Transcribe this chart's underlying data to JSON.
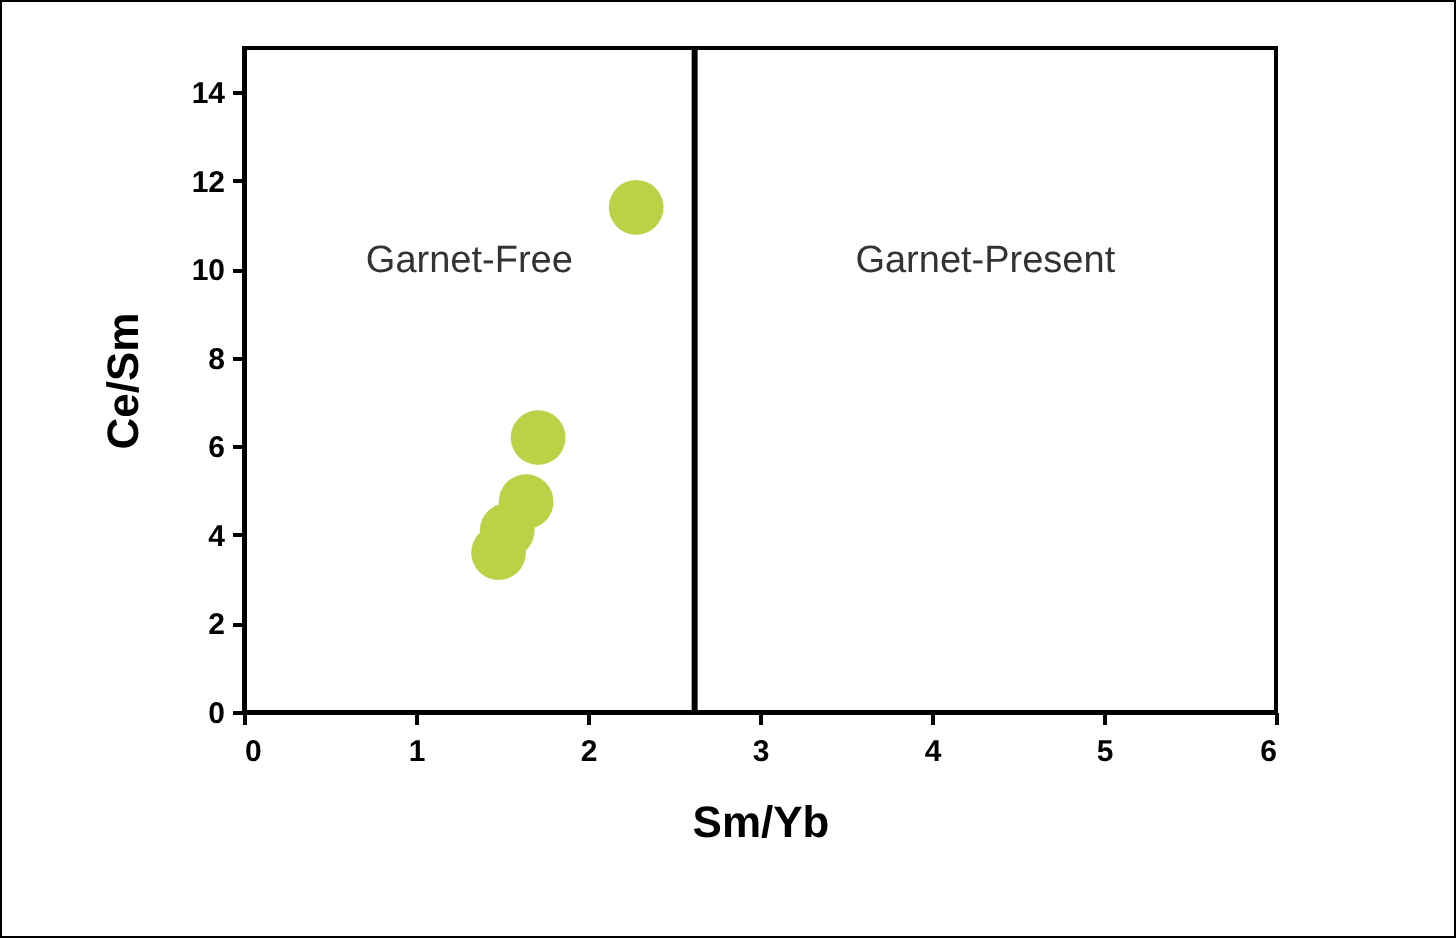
{
  "chart_data": {
    "type": "scatter",
    "xlabel": "Sm/Yb",
    "ylabel": "Ce/Sm",
    "x": [
      2.28,
      1.71,
      1.64,
      1.53,
      1.48
    ],
    "series": [
      {
        "color": "#bcd246",
        "values": [
          11.4,
          6.2,
          4.75,
          4.1,
          3.6
        ]
      }
    ],
    "xlim": [
      0,
      6
    ],
    "xticks": [
      0,
      1,
      2,
      3,
      4,
      5,
      6
    ],
    "ylim": [
      0,
      15
    ],
    "yticks": [
      0,
      2,
      4,
      6,
      8,
      10,
      12,
      14
    ],
    "grid": false,
    "marker": "circle",
    "ref_lines": [
      {
        "axis": "x",
        "value": 2.62,
        "color": "#000000"
      }
    ],
    "annotations": [
      "Garnet-Free",
      "Garnet-Present"
    ]
  }
}
